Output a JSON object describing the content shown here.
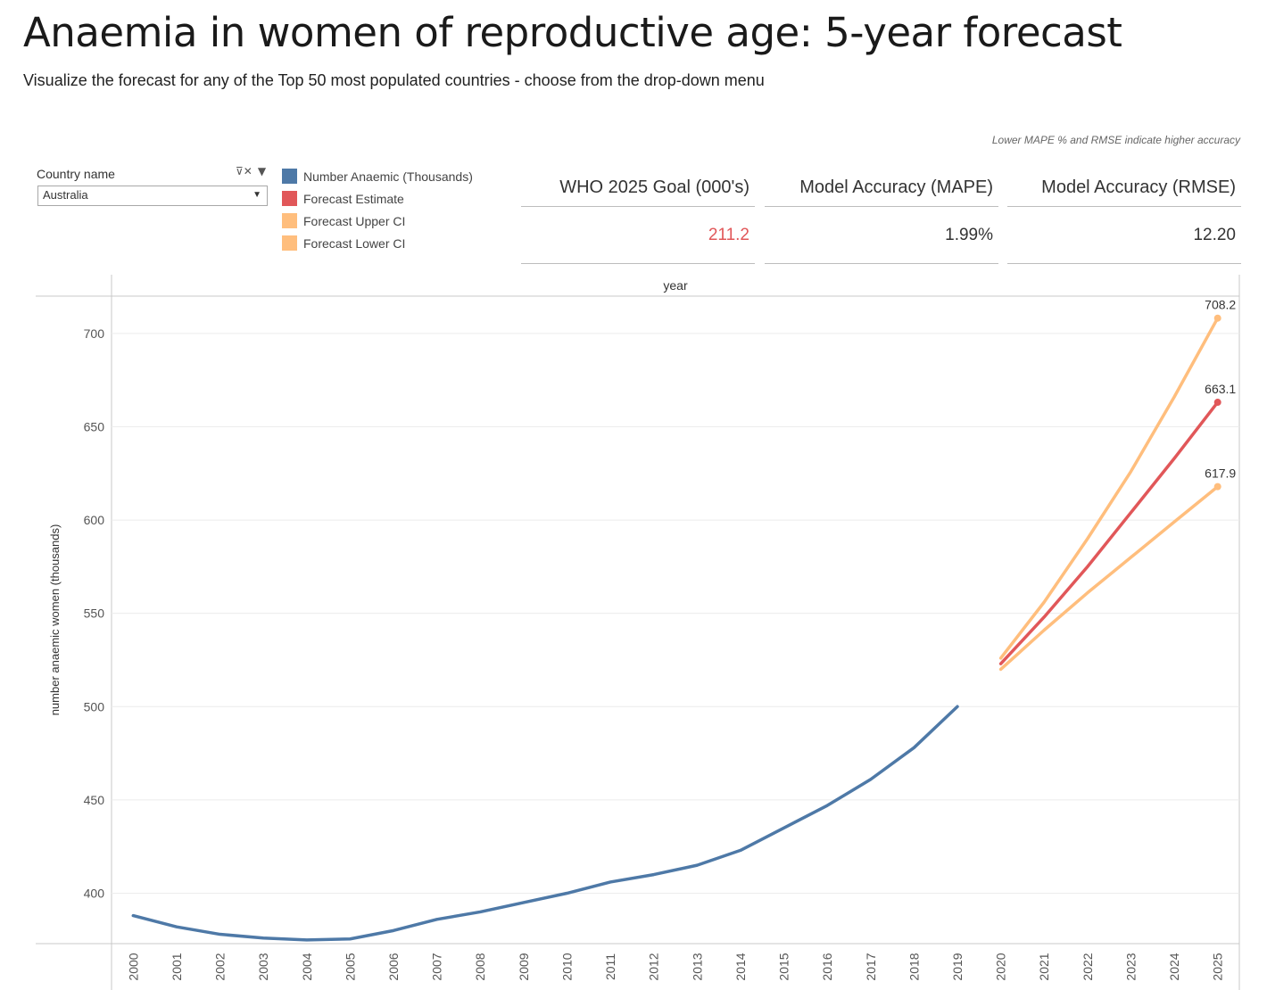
{
  "title": "Anaemia in women of reproductive age: 5-year forecast",
  "subtitle": "Visualize the forecast for any of the Top 50 most populated countries - choose  from the drop-down menu",
  "accuracy_note": "Lower MAPE % and RMSE indicate higher accuracy",
  "filter": {
    "label": "Country name",
    "selected": "Australia",
    "clear_icon": "filter-clear-icon",
    "menu_icon": "caret-down-icon"
  },
  "legend": [
    {
      "label": "Number Anaemic (Thousands)",
      "color": "#4e79a7"
    },
    {
      "label": "Forecast Estimate",
      "color": "#e15759"
    },
    {
      "label": "Forecast Upper CI",
      "color": "#ffbe7d"
    },
    {
      "label": "Forecast Lower CI",
      "color": "#ffbe7d"
    }
  ],
  "kpis": [
    {
      "label": "WHO 2025 Goal (000's)",
      "value": "211.2",
      "value_color": "#e15759"
    },
    {
      "label": "Model Accuracy (MAPE)",
      "value": "1.99%",
      "value_color": "#333333"
    },
    {
      "label": "Model Accuracy (RMSE)",
      "value": "12.20",
      "value_color": "#333333"
    }
  ],
  "chart_data": {
    "type": "line",
    "xlabel": "year",
    "ylabel": "number anaemic women (thousands)",
    "ylim": [
      373,
      720
    ],
    "yticks": [
      400,
      450,
      500,
      550,
      600,
      650,
      700
    ],
    "categories": [
      "2000",
      "2001",
      "2002",
      "2003",
      "2004",
      "2005",
      "2006",
      "2007",
      "2008",
      "2009",
      "2010",
      "2011",
      "2012",
      "2013",
      "2014",
      "2015",
      "2016",
      "2017",
      "2018",
      "2019",
      "2020",
      "2021",
      "2022",
      "2023",
      "2024",
      "2025"
    ],
    "grid": true,
    "series": [
      {
        "name": "Number Anaemic (Thousands)",
        "color": "#4e79a7",
        "x": [
          "2000",
          "2001",
          "2002",
          "2003",
          "2004",
          "2005",
          "2006",
          "2007",
          "2008",
          "2009",
          "2010",
          "2011",
          "2012",
          "2013",
          "2014",
          "2015",
          "2016",
          "2017",
          "2018",
          "2019"
        ],
        "values": [
          388,
          382,
          378,
          376,
          375,
          375.5,
          380,
          386,
          390,
          395,
          400,
          406,
          410,
          415,
          423,
          435,
          447,
          461,
          478,
          500
        ]
      },
      {
        "name": "Forecast Upper CI",
        "color": "#ffbe7d",
        "x": [
          "2020",
          "2021",
          "2022",
          "2023",
          "2024",
          "2025"
        ],
        "values": [
          526,
          556,
          590,
          626,
          666,
          708.2
        ],
        "end_label": "708.2"
      },
      {
        "name": "Forecast Estimate",
        "color": "#e15759",
        "x": [
          "2020",
          "2021",
          "2022",
          "2023",
          "2024",
          "2025"
        ],
        "values": [
          523,
          548,
          575,
          604,
          633,
          663.1
        ],
        "end_label": "663.1"
      },
      {
        "name": "Forecast Lower CI",
        "color": "#ffbe7d",
        "x": [
          "2020",
          "2021",
          "2022",
          "2023",
          "2024",
          "2025"
        ],
        "values": [
          520,
          541,
          561,
          580,
          599,
          617.9
        ],
        "end_label": "617.9"
      }
    ]
  }
}
